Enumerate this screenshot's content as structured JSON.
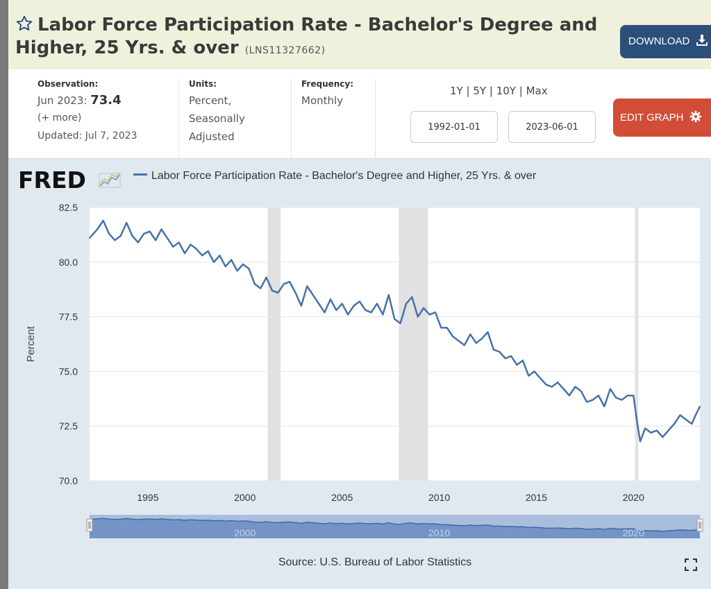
{
  "header": {
    "title": "Labor Force Participation Rate - Bachelor's Degree and Higher, 25 Yrs. & over",
    "series_id": "(LNS11327662)",
    "download_label": "DOWNLOAD"
  },
  "meta": {
    "observation_label": "Observation:",
    "observation_date": "Jun 2023:",
    "observation_value": "73.4",
    "more": "(+ more)",
    "updated": "Updated: Jul 7, 2023",
    "units_label": "Units:",
    "units_line1": "Percent,",
    "units_line2": "Seasonally",
    "units_line3": "Adjusted",
    "frequency_label": "Frequency:",
    "frequency_value": "Monthly"
  },
  "controls": {
    "ranges": [
      "1Y",
      "5Y",
      "10Y",
      "Max"
    ],
    "range_sep": "|",
    "start_date": "1992-01-01",
    "end_date": "2023-06-01",
    "edit_label": "EDIT GRAPH"
  },
  "logo_text": "FRED",
  "source": "Source: U.S. Bureau of Labor Statistics",
  "colors": {
    "series": "#4572a7",
    "recession": "#e1e1e1",
    "download": "#2c4f7a",
    "edit": "#d24d38",
    "panel": "#e1e9f0"
  },
  "chart_data": {
    "type": "line",
    "title": "",
    "ylabel": "Percent",
    "xlabel": "",
    "ylim": [
      70.0,
      82.5
    ],
    "xlim": [
      1992.0,
      2023.42
    ],
    "yticks": [
      "70.0",
      "72.5",
      "75.0",
      "77.5",
      "80.0",
      "82.5"
    ],
    "xticks": [
      "1995",
      "2000",
      "2005",
      "2010",
      "2015",
      "2020"
    ],
    "navigator_labels": [
      "2000",
      "2010",
      "2020"
    ],
    "recessions": [
      [
        2001.17,
        2001.83
      ],
      [
        2007.92,
        2009.42
      ],
      [
        2020.08,
        2020.25
      ]
    ],
    "series": [
      {
        "name": "Labor Force Participation Rate - Bachelor's Degree and Higher, 25 Yrs. & over",
        "points": [
          [
            1992.0,
            81.1
          ],
          [
            1992.4,
            81.5
          ],
          [
            1992.7,
            81.9
          ],
          [
            1993.0,
            81.3
          ],
          [
            1993.3,
            81.0
          ],
          [
            1993.6,
            81.2
          ],
          [
            1993.9,
            81.8
          ],
          [
            1994.2,
            81.2
          ],
          [
            1994.5,
            80.9
          ],
          [
            1994.8,
            81.3
          ],
          [
            1995.1,
            81.4
          ],
          [
            1995.4,
            81.0
          ],
          [
            1995.7,
            81.5
          ],
          [
            1996.0,
            81.1
          ],
          [
            1996.3,
            80.7
          ],
          [
            1996.6,
            80.9
          ],
          [
            1996.9,
            80.4
          ],
          [
            1997.2,
            80.8
          ],
          [
            1997.5,
            80.6
          ],
          [
            1997.8,
            80.3
          ],
          [
            1998.1,
            80.5
          ],
          [
            1998.4,
            80.0
          ],
          [
            1998.7,
            80.3
          ],
          [
            1999.0,
            79.8
          ],
          [
            1999.3,
            80.1
          ],
          [
            1999.6,
            79.6
          ],
          [
            1999.9,
            79.9
          ],
          [
            2000.2,
            79.7
          ],
          [
            2000.5,
            79.0
          ],
          [
            2000.8,
            78.8
          ],
          [
            2001.1,
            79.3
          ],
          [
            2001.4,
            78.7
          ],
          [
            2001.7,
            78.6
          ],
          [
            2002.0,
            79.0
          ],
          [
            2002.3,
            79.1
          ],
          [
            2002.6,
            78.6
          ],
          [
            2002.9,
            78.0
          ],
          [
            2003.2,
            78.9
          ],
          [
            2003.5,
            78.5
          ],
          [
            2003.8,
            78.1
          ],
          [
            2004.1,
            77.7
          ],
          [
            2004.4,
            78.3
          ],
          [
            2004.7,
            77.8
          ],
          [
            2005.0,
            78.1
          ],
          [
            2005.3,
            77.6
          ],
          [
            2005.6,
            78.0
          ],
          [
            2005.9,
            78.2
          ],
          [
            2006.2,
            77.8
          ],
          [
            2006.5,
            77.7
          ],
          [
            2006.8,
            78.1
          ],
          [
            2007.1,
            77.6
          ],
          [
            2007.4,
            78.5
          ],
          [
            2007.7,
            77.4
          ],
          [
            2008.0,
            77.2
          ],
          [
            2008.3,
            78.1
          ],
          [
            2008.6,
            78.4
          ],
          [
            2008.9,
            77.5
          ],
          [
            2009.2,
            77.9
          ],
          [
            2009.5,
            77.6
          ],
          [
            2009.8,
            77.7
          ],
          [
            2010.1,
            77.0
          ],
          [
            2010.4,
            77.0
          ],
          [
            2010.7,
            76.6
          ],
          [
            2011.0,
            76.4
          ],
          [
            2011.3,
            76.2
          ],
          [
            2011.6,
            76.7
          ],
          [
            2011.9,
            76.3
          ],
          [
            2012.2,
            76.5
          ],
          [
            2012.5,
            76.8
          ],
          [
            2012.8,
            76.0
          ],
          [
            2013.1,
            75.9
          ],
          [
            2013.4,
            75.6
          ],
          [
            2013.7,
            75.7
          ],
          [
            2014.0,
            75.3
          ],
          [
            2014.3,
            75.5
          ],
          [
            2014.6,
            74.8
          ],
          [
            2014.9,
            75.0
          ],
          [
            2015.2,
            74.7
          ],
          [
            2015.5,
            74.4
          ],
          [
            2015.8,
            74.3
          ],
          [
            2016.1,
            74.5
          ],
          [
            2016.4,
            74.2
          ],
          [
            2016.7,
            73.9
          ],
          [
            2017.0,
            74.3
          ],
          [
            2017.3,
            74.1
          ],
          [
            2017.6,
            73.6
          ],
          [
            2017.9,
            73.7
          ],
          [
            2018.2,
            73.9
          ],
          [
            2018.5,
            73.4
          ],
          [
            2018.8,
            74.2
          ],
          [
            2019.1,
            73.8
          ],
          [
            2019.4,
            73.7
          ],
          [
            2019.7,
            73.9
          ],
          [
            2020.0,
            73.9
          ],
          [
            2020.2,
            72.6
          ],
          [
            2020.35,
            71.8
          ],
          [
            2020.6,
            72.4
          ],
          [
            2020.9,
            72.2
          ],
          [
            2021.2,
            72.3
          ],
          [
            2021.5,
            72.0
          ],
          [
            2021.8,
            72.3
          ],
          [
            2022.1,
            72.6
          ],
          [
            2022.4,
            73.0
          ],
          [
            2022.7,
            72.8
          ],
          [
            2023.0,
            72.6
          ],
          [
            2023.2,
            73.0
          ],
          [
            2023.42,
            73.4
          ]
        ]
      }
    ]
  }
}
